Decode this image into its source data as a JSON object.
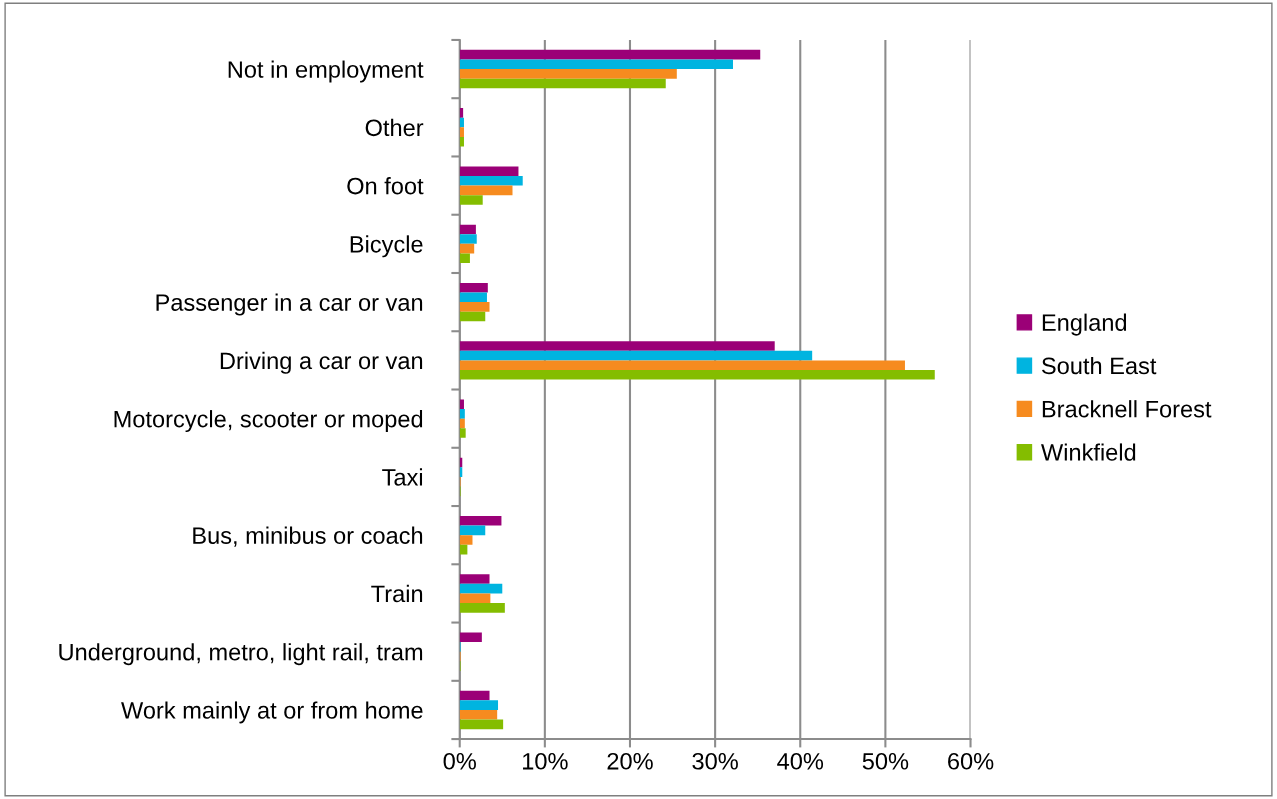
{
  "chart_data": {
    "type": "bar",
    "orientation": "horizontal",
    "categories": [
      "Not in employment",
      "Other",
      "On foot",
      "Bicycle",
      "Passenger in a car or van",
      "Driving a car or van",
      "Motorcycle, scooter or moped",
      "Taxi",
      "Bus, minibus or coach",
      "Train",
      "Underground, metro, light rail, tram",
      "Work mainly at or from home"
    ],
    "series": [
      {
        "name": "England",
        "color": "#9b0077",
        "values": [
          35.3,
          0.4,
          6.9,
          1.9,
          3.3,
          37.0,
          0.5,
          0.3,
          4.9,
          3.5,
          2.6,
          3.5
        ]
      },
      {
        "name": "South East",
        "color": "#00b4e0",
        "values": [
          32.1,
          0.5,
          7.4,
          2.0,
          3.2,
          41.4,
          0.6,
          0.3,
          3.0,
          5.0,
          0.1,
          4.5
        ]
      },
      {
        "name": "Bracknell Forest",
        "color": "#f68b1f",
        "values": [
          25.5,
          0.5,
          6.2,
          1.7,
          3.5,
          52.3,
          0.6,
          0.1,
          1.5,
          3.6,
          0.1,
          4.4
        ]
      },
      {
        "name": "Winkfield",
        "color": "#84bd00",
        "values": [
          24.2,
          0.5,
          2.7,
          1.2,
          3.0,
          55.8,
          0.7,
          0.1,
          0.9,
          5.3,
          0.1,
          5.1
        ]
      }
    ],
    "xlim": [
      0,
      60
    ],
    "xticks": [
      {
        "value": 0,
        "label": "0%"
      },
      {
        "value": 10,
        "label": "10%"
      },
      {
        "value": 20,
        "label": "20%"
      },
      {
        "value": 30,
        "label": "30%"
      },
      {
        "value": 40,
        "label": "40%"
      },
      {
        "value": 50,
        "label": "50%"
      },
      {
        "value": 60,
        "label": "60%"
      }
    ],
    "grid": "x",
    "legend": "right"
  }
}
